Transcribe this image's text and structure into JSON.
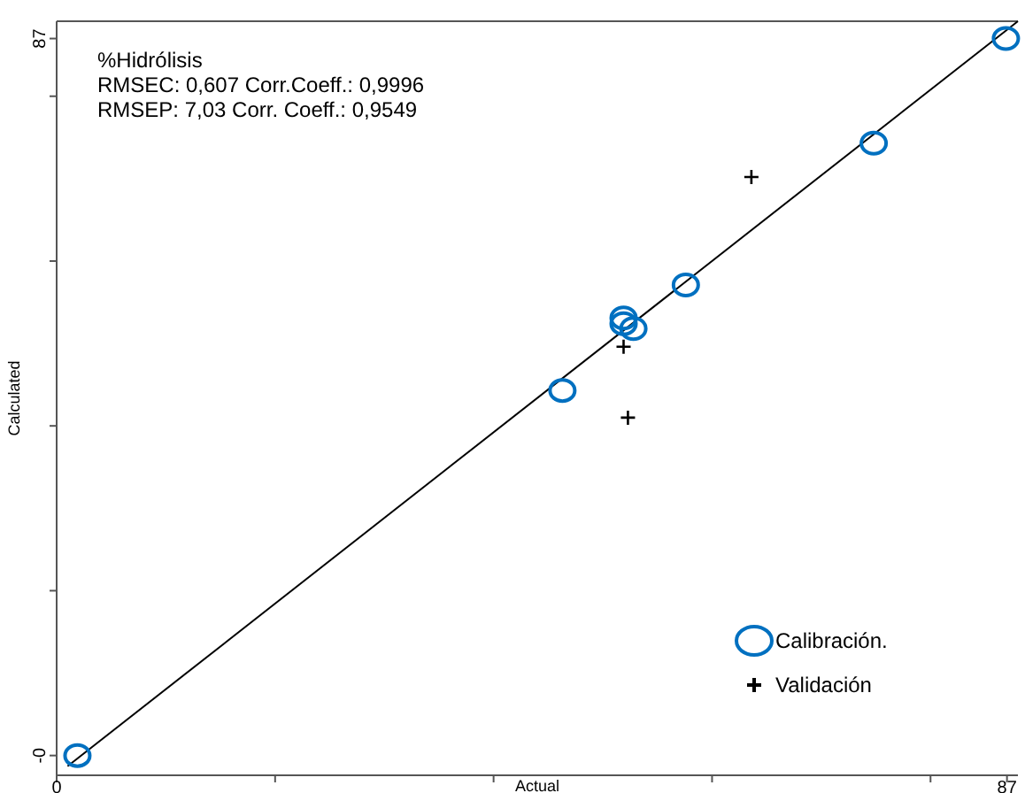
{
  "chart_data": {
    "type": "scatter",
    "xlabel": "Actual",
    "ylabel": "Calculated",
    "annotations": [
      "%Hidrólisis",
      "RMSEC: 0,607 Corr.Coeff.: 0,9996",
      "RMSEP: 7,03 Corr. Coeff.: 0,9549"
    ],
    "xlim": [
      0,
      88
    ],
    "ylim": [
      -2.4,
      89.1
    ],
    "xticks": [
      {
        "value": 0,
        "label": "0"
      },
      {
        "value": 20,
        "label": null
      },
      {
        "value": 40,
        "label": null
      },
      {
        "value": 60,
        "label": null
      },
      {
        "value": 80,
        "label": null
      },
      {
        "value": 87,
        "label": "87"
      }
    ],
    "yticks": [
      {
        "value": 0,
        "label": "-0"
      },
      {
        "value": 20,
        "label": null
      },
      {
        "value": 40,
        "label": null
      },
      {
        "value": 60,
        "label": null
      },
      {
        "value": 80,
        "label": null
      },
      {
        "value": 87,
        "label": "87"
      }
    ],
    "series": [
      {
        "type": "line",
        "color": "#000000",
        "x": [
          1,
          88
        ],
        "values": [
          -1.3,
          89.1
        ],
        "marker": "none"
      },
      {
        "name": "Calibración.",
        "color": "#0070c0",
        "marker": "circle",
        "x": [
          1.9,
          46.3,
          51.9,
          51.9,
          52.8,
          57.6,
          74.8,
          86.9
        ],
        "values": [
          0,
          44.3,
          53.1,
          52.4,
          51.8,
          57.1,
          74.3,
          87
        ]
      },
      {
        "name": "Validación",
        "color": "#000000",
        "marker": "cross",
        "x": [
          63.6,
          51.9,
          52.3
        ],
        "values": [
          70.2,
          49.6,
          41
        ]
      }
    ],
    "legend": "bottom right"
  }
}
